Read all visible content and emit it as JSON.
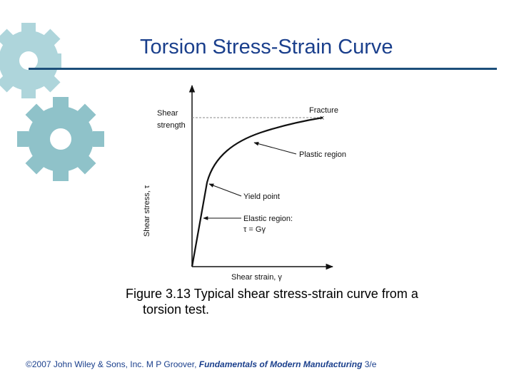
{
  "slide": {
    "title": "Torsion Stress-Strain Curve",
    "caption_line1": "Figure 3.13  Typical shear stress‑strain curve from a",
    "caption_line2": "torsion test.",
    "footer_prefix": "©2007 John Wiley & Sons, Inc.  M P Groover, ",
    "footer_book": "Fundamentals of Modern Manufacturing",
    "footer_suffix": " 3/e",
    "accent_color": "#1a3f8c",
    "gear_color": "#9cc9cf"
  },
  "figure": {
    "shear_strength_label_1": "Shear",
    "shear_strength_label_2": "strength",
    "y_axis_label": "Shear stress, τ",
    "x_axis_label": "Shear strain, γ",
    "fracture_label": "Fracture",
    "plastic_label": "Plastic region",
    "yield_label": "Yield point",
    "elastic_label": "Elastic region:",
    "elastic_formula": "τ = Gγ"
  }
}
